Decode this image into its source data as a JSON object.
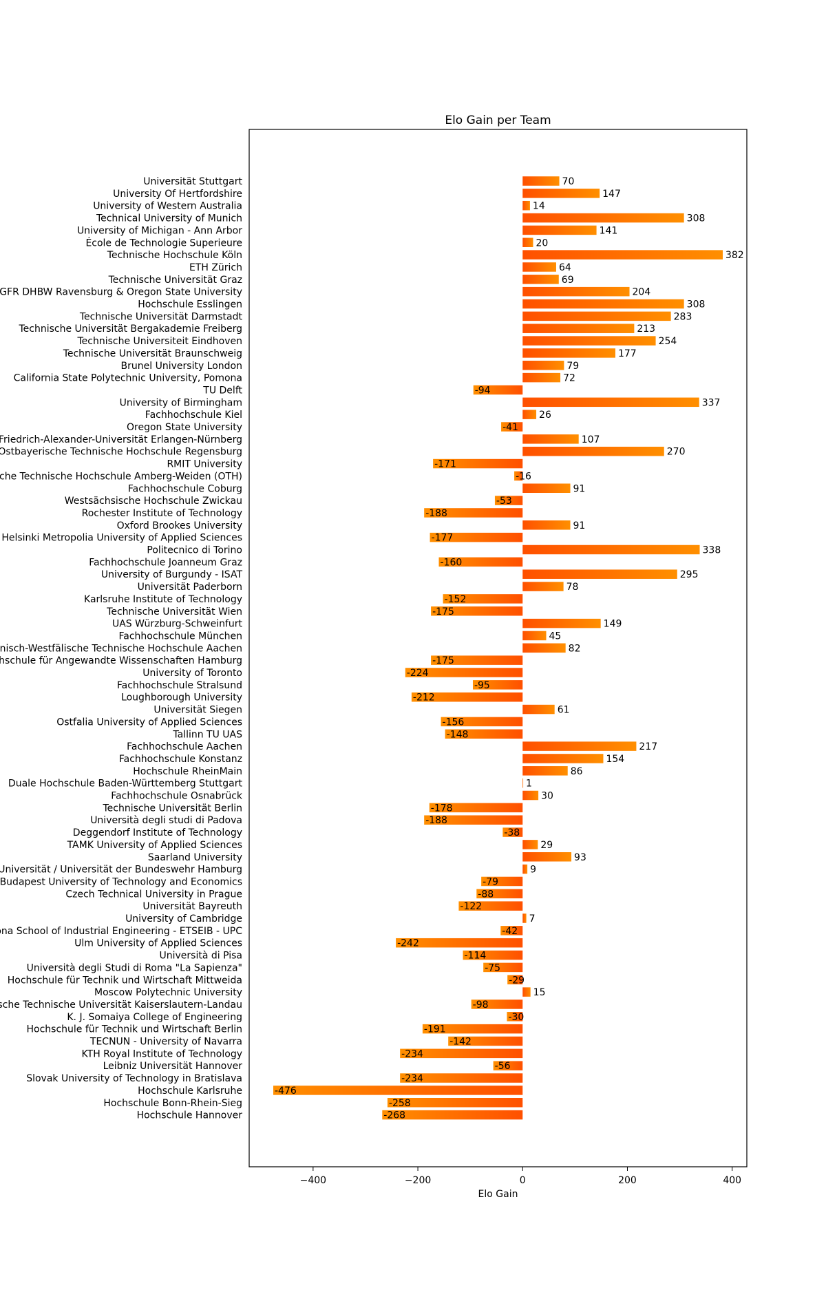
{
  "chart_data": {
    "type": "bar",
    "orientation": "horizontal",
    "title": "Elo Gain per Team",
    "xlabel": "Elo Gain",
    "ylabel": "",
    "xlim": [
      -522,
      428
    ],
    "xticks": [
      -400,
      -200,
      0,
      200,
      400
    ],
    "xtick_labels": [
      "−400",
      "−200",
      "0",
      "200",
      "400"
    ],
    "grid": false,
    "legend": "none",
    "colors": {
      "bar_start": "#ff5000",
      "bar_end": "#ff8f00",
      "frame": "#000000"
    },
    "categories": [
      "Universität Stuttgart",
      "University Of Hertfordshire",
      "University of Western Australia",
      "Technical University of Munich",
      "University of Michigan - Ann Arbor",
      "École de Technologie Superieure",
      "Technische Hochschule Köln",
      "ETH Zürich",
      "Technische Universität Graz",
      "GFR DHBW Ravensburg & Oregon State University",
      "Hochschule Esslingen",
      "Technische Universität Darmstadt",
      "Technische Universität Bergakademie Freiberg",
      "Technische Universiteit Eindhoven",
      "Technische Universität Braunschweig",
      "Brunel University London",
      "California State Polytechnic University, Pomona",
      "TU Delft",
      "University of Birmingham",
      "Fachhochschule Kiel",
      "Oregon State University",
      "Friedrich-Alexander-Universität Erlangen-Nürnberg",
      "Ostbayerische Technische Hochschule Regensburg",
      "RMIT University",
      "Ostbayerische Technische Hochschule Amberg-Weiden (OTH)",
      "Fachhochschule Coburg",
      "Westsächsische Hochschule Zwickau",
      "Rochester Institute of Technology",
      "Oxford Brookes University",
      "Helsinki Metropolia University of Applied Sciences",
      "Politecnico di Torino",
      "Fachhochschule Joanneum Graz",
      "University of Burgundy - ISAT",
      "Universität Paderborn",
      "Karlsruhe Institute of Technology",
      "Technische Universität Wien",
      "UAS Würzburg-Schweinfurt",
      "Fachhochschule München",
      "Rheinisch-Westfälische Technische Hochschule Aachen",
      "Hochschule für Angewandte Wissenschaften Hamburg",
      "University of Toronto",
      "Fachhochschule Stralsund",
      "Loughborough University",
      "Universität Siegen",
      "Ostfalia University of Applied Sciences",
      "Tallinn TU UAS",
      "Fachhochschule Aachen",
      "Fachhochschule Konstanz",
      "Hochschule RheinMain",
      "Duale Hochschule Baden-Württemberg Stuttgart",
      "Fachhochschule Osnabrück",
      "Technische Universität Berlin",
      "Università degli studi di Padova",
      "Deggendorf Institute of Technology",
      "TAMK University of Applied Sciences",
      "Saarland University",
      "Helmut-Schmidt-Universität / Universität der Bundeswehr Hamburg",
      "Budapest University of Technology and Economics",
      "Czech Technical University in Prague",
      "Universität Bayreuth",
      "University of Cambridge",
      "Barcelona School of Industrial Engineering - ETSEIB - UPC",
      "Ulm University of Applied Sciences",
      "Università di Pisa",
      "Università degli Studi di Roma \"La Sapienza\"",
      "Hochschule für Technik und Wirtschaft Mittweida",
      "Moscow Polytechnic University",
      "Rheinland-Pfälzische Technische Universität Kaiserslautern-Landau",
      "K. J. Somaiya College of Engineering",
      "Hochschule für Technik und Wirtschaft Berlin",
      "TECNUN - University of Navarra",
      "KTH Royal Institute of Technology",
      "Leibniz Universität Hannover",
      "Slovak University of Technology in Bratislava",
      "Hochschule Karlsruhe",
      "Hochschule Bonn-Rhein-Sieg",
      "Hochschule Hannover"
    ],
    "values": [
      70,
      147,
      14,
      308,
      141,
      20,
      382,
      64,
      69,
      204,
      308,
      283,
      213,
      254,
      177,
      79,
      72,
      -94,
      337,
      26,
      -41,
      107,
      270,
      -171,
      -16,
      91,
      -53,
      -188,
      91,
      -177,
      338,
      -160,
      295,
      78,
      -152,
      -175,
      149,
      45,
      82,
      -175,
      -224,
      -95,
      -212,
      61,
      -156,
      -148,
      217,
      154,
      86,
      1,
      30,
      -178,
      -188,
      -38,
      29,
      93,
      9,
      -79,
      -88,
      -122,
      7,
      -42,
      -242,
      -114,
      -75,
      -29,
      15,
      -98,
      -30,
      -191,
      -142,
      -234,
      -56,
      -234,
      -476,
      -258,
      -268
    ]
  }
}
